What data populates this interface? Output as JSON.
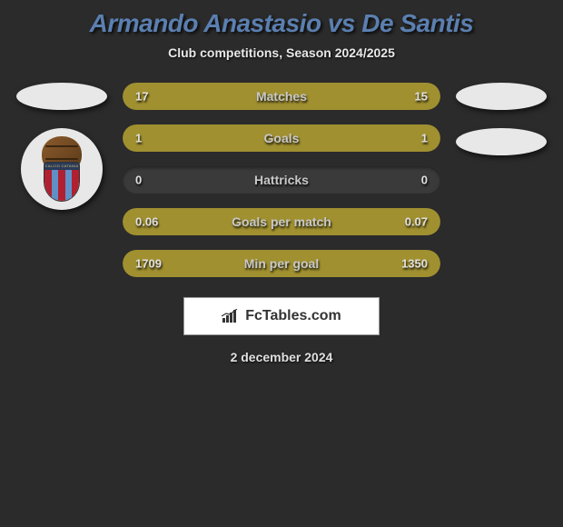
{
  "title": "Armando Anastasio vs De Santis",
  "subtitle": "Club competitions, Season 2024/2025",
  "colors": {
    "background": "#2b2b2b",
    "title_color": "#5b7fb0",
    "bar_fill": "#a09030",
    "bar_bg": "#3a3a3a",
    "text": "#e0e0e0"
  },
  "badge": {
    "shield_text": "CALCIO CATANIA",
    "stripe_red": "#b02030",
    "stripe_blue": "#6090c8"
  },
  "stats": [
    {
      "label": "Matches",
      "left_val": "17",
      "right_val": "15",
      "left_pct": 53,
      "right_pct": 47
    },
    {
      "label": "Goals",
      "left_val": "1",
      "right_val": "1",
      "left_pct": 50,
      "right_pct": 50
    },
    {
      "label": "Hattricks",
      "left_val": "0",
      "right_val": "0",
      "left_pct": 0,
      "right_pct": 0
    },
    {
      "label": "Goals per match",
      "left_val": "0.06",
      "right_val": "0.07",
      "left_pct": 46,
      "right_pct": 54
    },
    {
      "label": "Min per goal",
      "left_val": "1709",
      "right_val": "1350",
      "left_pct": 56,
      "right_pct": 44
    }
  ],
  "footer": {
    "brand": "FcTables.com",
    "date": "2 december 2024"
  }
}
